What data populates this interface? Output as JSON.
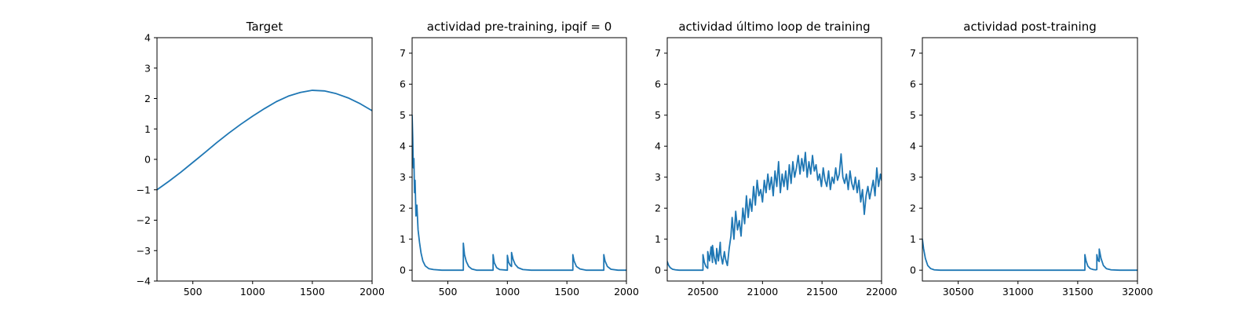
{
  "chart_data": [
    {
      "type": "line",
      "title": "Target",
      "xlabel": "",
      "ylabel": "",
      "xlim": [
        200,
        2000
      ],
      "ylim": [
        -4,
        4
      ],
      "xticks": [
        500,
        1000,
        1500,
        2000
      ],
      "yticks": [
        -4,
        -3,
        -2,
        -1,
        0,
        1,
        2,
        3,
        4
      ],
      "grid": false,
      "series": [
        {
          "color": "#1f77b4",
          "x": [
            200,
            300,
            400,
            500,
            600,
            700,
            800,
            900,
            1000,
            1100,
            1200,
            1300,
            1400,
            1500,
            1600,
            1700,
            1800,
            1900,
            2000
          ],
          "y": [
            -1.0,
            -0.72,
            -0.42,
            -0.1,
            0.22,
            0.55,
            0.86,
            1.15,
            1.42,
            1.67,
            1.9,
            2.08,
            2.2,
            2.27,
            2.25,
            2.16,
            2.02,
            1.83,
            1.6
          ]
        }
      ]
    },
    {
      "type": "line",
      "title": "actividad pre-training, ipqif = 0",
      "xlabel": "",
      "ylabel": "",
      "xlim": [
        200,
        2000
      ],
      "ylim": [
        -0.35,
        7.5
      ],
      "xticks": [
        500,
        1000,
        1500,
        2000
      ],
      "yticks": [
        0,
        1,
        2,
        3,
        4,
        5,
        6,
        7
      ],
      "grid": false,
      "series": [
        {
          "color": "#1f77b4",
          "x": [
            200,
            205,
            210,
            215,
            220,
            225,
            232,
            240,
            250,
            262,
            275,
            290,
            310,
            340,
            380,
            450,
            630,
            630,
            640,
            655,
            675,
            700,
            740,
            880,
            880,
            890,
            910,
            935,
            1000,
            1000,
            1010,
            1025,
            1035,
            1035,
            1048,
            1065,
            1090,
            1130,
            1200,
            1550,
            1550,
            1560,
            1580,
            1610,
            1660,
            1810,
            1810,
            1820,
            1840,
            1870,
            1930,
            2000
          ],
          "y": [
            5.0,
            4.3,
            3.3,
            3.6,
            2.5,
            2.9,
            1.75,
            2.1,
            1.3,
            0.9,
            0.55,
            0.3,
            0.14,
            0.05,
            0.02,
            0.0,
            0.0,
            0.87,
            0.5,
            0.28,
            0.12,
            0.04,
            0.0,
            0.0,
            0.5,
            0.24,
            0.08,
            0.02,
            0.0,
            0.48,
            0.26,
            0.15,
            0.12,
            0.57,
            0.35,
            0.19,
            0.08,
            0.02,
            0.0,
            0.0,
            0.5,
            0.3,
            0.12,
            0.04,
            0.0,
            0.0,
            0.5,
            0.3,
            0.12,
            0.03,
            0.0,
            0.0
          ]
        }
      ]
    },
    {
      "type": "line",
      "title": "actividad último loop de training",
      "xlabel": "",
      "ylabel": "",
      "xlim": [
        20200,
        22000
      ],
      "ylim": [
        -0.35,
        7.5
      ],
      "xticks": [
        20500,
        21000,
        21500,
        22000
      ],
      "yticks": [
        0,
        1,
        2,
        3,
        4,
        5,
        6,
        7
      ],
      "grid": false,
      "series": [
        {
          "color": "#1f77b4",
          "x": [
            20200,
            20210,
            20225,
            20245,
            20270,
            20300,
            20350,
            20400,
            20500,
            20500,
            20512,
            20525,
            20540,
            20540,
            20555,
            20568,
            20580,
            20580,
            20595,
            20610,
            20615,
            20630,
            20645,
            20650,
            20665,
            20680,
            20690,
            20705,
            20720,
            20735,
            20745,
            20760,
            20775,
            20790,
            20805,
            20820,
            20835,
            20850,
            20865,
            20880,
            20895,
            20910,
            20925,
            20940,
            20955,
            20970,
            20985,
            21000,
            21015,
            21030,
            21045,
            21060,
            21075,
            21090,
            21105,
            21120,
            21135,
            21150,
            21165,
            21180,
            21195,
            21210,
            21225,
            21240,
            21255,
            21270,
            21285,
            21300,
            21315,
            21330,
            21345,
            21360,
            21375,
            21390,
            21405,
            21420,
            21435,
            21450,
            21465,
            21480,
            21495,
            21510,
            21525,
            21540,
            21555,
            21570,
            21585,
            21600,
            21615,
            21630,
            21645,
            21660,
            21675,
            21690,
            21705,
            21720,
            21735,
            21750,
            21765,
            21780,
            21795,
            21810,
            21825,
            21840,
            21855,
            21870,
            21885,
            21900,
            21915,
            21930,
            21945,
            21960,
            21975,
            21990,
            22000
          ],
          "y": [
            0.28,
            0.17,
            0.08,
            0.03,
            0.01,
            0.0,
            0.0,
            0.0,
            0.0,
            0.5,
            0.25,
            0.12,
            0.06,
            0.6,
            0.3,
            0.75,
            0.25,
            0.8,
            0.4,
            0.2,
            0.7,
            0.3,
            0.9,
            0.5,
            0.2,
            0.6,
            0.35,
            0.15,
            0.7,
            1.1,
            1.7,
            1.0,
            1.9,
            1.3,
            1.6,
            1.1,
            2.0,
            1.5,
            2.4,
            1.7,
            2.3,
            1.9,
            2.7,
            2.1,
            2.9,
            2.4,
            2.6,
            2.2,
            2.9,
            2.5,
            3.1,
            2.6,
            3.0,
            2.4,
            3.2,
            2.7,
            3.5,
            2.5,
            3.1,
            2.7,
            3.2,
            2.6,
            3.4,
            2.8,
            3.5,
            3.0,
            3.3,
            3.7,
            3.1,
            3.6,
            3.2,
            3.8,
            3.0,
            3.5,
            3.1,
            3.7,
            3.2,
            3.4,
            2.9,
            3.1,
            2.7,
            3.3,
            2.9,
            2.7,
            3.2,
            2.6,
            3.0,
            2.8,
            3.3,
            2.9,
            3.1,
            3.75,
            3.0,
            2.8,
            3.1,
            2.6,
            3.2,
            2.8,
            2.6,
            3.0,
            2.5,
            2.9,
            2.2,
            2.6,
            1.8,
            2.4,
            2.7,
            2.3,
            2.6,
            2.9,
            2.4,
            3.3,
            2.7,
            3.1,
            2.9
          ]
        }
      ]
    },
    {
      "type": "line",
      "title": "actividad post-training",
      "xlabel": "",
      "ylabel": "",
      "xlim": [
        30200,
        32000
      ],
      "ylim": [
        -0.35,
        7.5
      ],
      "xticks": [
        30500,
        31000,
        31500,
        32000
      ],
      "yticks": [
        0,
        1,
        2,
        3,
        4,
        5,
        6,
        7
      ],
      "grid": false,
      "series": [
        {
          "color": "#1f77b4",
          "x": [
            30200,
            30210,
            30225,
            30245,
            30270,
            30300,
            30350,
            31560,
            31560,
            31570,
            31585,
            31605,
            31630,
            31650,
            31660,
            31660,
            31670,
            31680,
            31680,
            31695,
            31715,
            31740,
            31780,
            31850,
            32000
          ],
          "y": [
            1.0,
            0.7,
            0.38,
            0.15,
            0.05,
            0.01,
            0.0,
            0.0,
            0.5,
            0.3,
            0.13,
            0.05,
            0.02,
            0.01,
            0.02,
            0.5,
            0.32,
            0.28,
            0.68,
            0.38,
            0.15,
            0.05,
            0.01,
            0.0,
            0.0
          ]
        }
      ]
    }
  ]
}
